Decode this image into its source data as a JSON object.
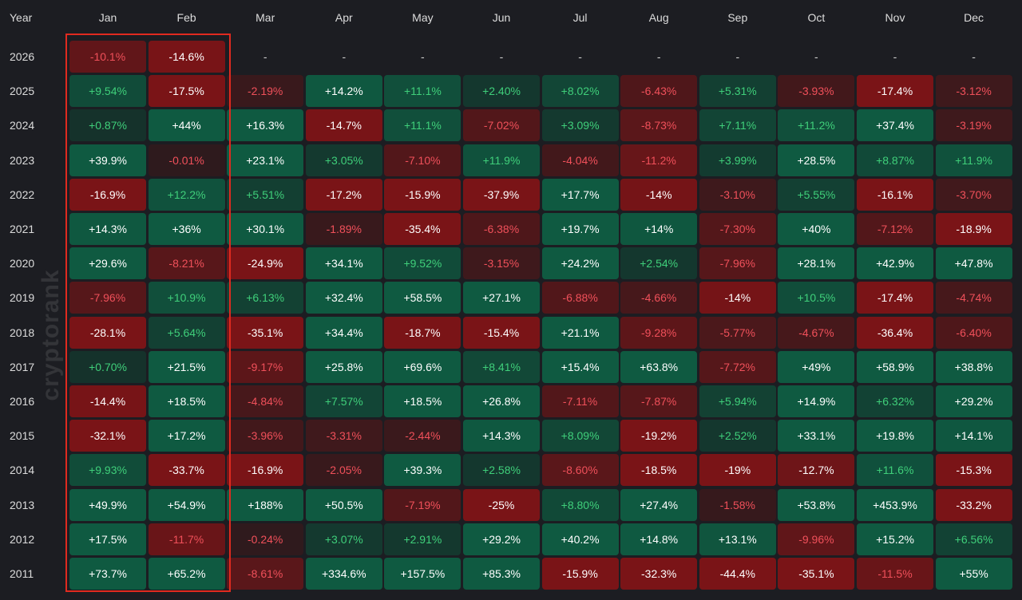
{
  "chart_data": {
    "type": "heatmap",
    "corner_label": "Year",
    "months": [
      "Jan",
      "Feb",
      "Mar",
      "Apr",
      "May",
      "Jun",
      "Jul",
      "Aug",
      "Sep",
      "Oct",
      "Nov",
      "Dec"
    ],
    "unit": "%",
    "rows": [
      {
        "year": "2026",
        "labels": [
          "-10.1%",
          "-14.6%",
          "-",
          "-",
          "-",
          "-",
          "-",
          "-",
          "-",
          "-",
          "-",
          "-"
        ],
        "values": [
          -10.1,
          -14.6,
          null,
          null,
          null,
          null,
          null,
          null,
          null,
          null,
          null,
          null
        ]
      },
      {
        "year": "2025",
        "labels": [
          "+9.54%",
          "-17.5%",
          "-2.19%",
          "+14.2%",
          "+11.1%",
          "+2.40%",
          "+8.02%",
          "-6.43%",
          "+5.31%",
          "-3.93%",
          "-17.4%",
          "-3.12%"
        ],
        "values": [
          9.54,
          -17.5,
          -2.19,
          14.2,
          11.1,
          2.4,
          8.02,
          -6.43,
          5.31,
          -3.93,
          -17.4,
          -3.12
        ]
      },
      {
        "year": "2024",
        "labels": [
          "+0.87%",
          "+44%",
          "+16.3%",
          "-14.7%",
          "+11.1%",
          "-7.02%",
          "+3.09%",
          "-8.73%",
          "+7.11%",
          "+11.2%",
          "+37.4%",
          "-3.19%"
        ],
        "values": [
          0.87,
          44,
          16.3,
          -14.7,
          11.1,
          -7.02,
          3.09,
          -8.73,
          7.11,
          11.2,
          37.4,
          -3.19
        ]
      },
      {
        "year": "2023",
        "labels": [
          "+39.9%",
          "-0.01%",
          "+23.1%",
          "+3.05%",
          "-7.10%",
          "+11.9%",
          "-4.04%",
          "-11.2%",
          "+3.99%",
          "+28.5%",
          "+8.87%",
          "+11.9%"
        ],
        "values": [
          39.9,
          -0.01,
          23.1,
          3.05,
          -7.1,
          11.9,
          -4.04,
          -11.2,
          3.99,
          28.5,
          8.87,
          11.9
        ]
      },
      {
        "year": "2022",
        "labels": [
          "-16.9%",
          "+12.2%",
          "+5.51%",
          "-17.2%",
          "-15.9%",
          "-37.9%",
          "+17.7%",
          "-14%",
          "-3.10%",
          "+5.55%",
          "-16.1%",
          "-3.70%"
        ],
        "values": [
          -16.9,
          12.2,
          5.51,
          -17.2,
          -15.9,
          -37.9,
          17.7,
          -14,
          -3.1,
          5.55,
          -16.1,
          -3.7
        ]
      },
      {
        "year": "2021",
        "labels": [
          "+14.3%",
          "+36%",
          "+30.1%",
          "-1.89%",
          "-35.4%",
          "-6.38%",
          "+19.7%",
          "+14%",
          "-7.30%",
          "+40%",
          "-7.12%",
          "-18.9%"
        ],
        "values": [
          14.3,
          36,
          30.1,
          -1.89,
          -35.4,
          -6.38,
          19.7,
          14,
          -7.3,
          40,
          -7.12,
          -18.9
        ]
      },
      {
        "year": "2020",
        "labels": [
          "+29.6%",
          "-8.21%",
          "-24.9%",
          "+34.1%",
          "+9.52%",
          "-3.15%",
          "+24.2%",
          "+2.54%",
          "-7.96%",
          "+28.1%",
          "+42.9%",
          "+47.8%"
        ],
        "values": [
          29.6,
          -8.21,
          -24.9,
          34.1,
          9.52,
          -3.15,
          24.2,
          2.54,
          -7.96,
          28.1,
          42.9,
          47.8
        ]
      },
      {
        "year": "2019",
        "labels": [
          "-7.96%",
          "+10.9%",
          "+6.13%",
          "+32.4%",
          "+58.5%",
          "+27.1%",
          "-6.88%",
          "-4.66%",
          "-14%",
          "+10.5%",
          "-17.4%",
          "-4.74%"
        ],
        "values": [
          -7.96,
          10.9,
          6.13,
          32.4,
          58.5,
          27.1,
          -6.88,
          -4.66,
          -14,
          10.5,
          -17.4,
          -4.74
        ]
      },
      {
        "year": "2018",
        "labels": [
          "-28.1%",
          "+5.64%",
          "-35.1%",
          "+34.4%",
          "-18.7%",
          "-15.4%",
          "+21.1%",
          "-9.28%",
          "-5.77%",
          "-4.67%",
          "-36.4%",
          "-6.40%"
        ],
        "values": [
          -28.1,
          5.64,
          -35.1,
          34.4,
          -18.7,
          -15.4,
          21.1,
          -9.28,
          -5.77,
          -4.67,
          -36.4,
          -6.4
        ]
      },
      {
        "year": "2017",
        "labels": [
          "+0.70%",
          "+21.5%",
          "-9.17%",
          "+25.8%",
          "+69.6%",
          "+8.41%",
          "+15.4%",
          "+63.8%",
          "-7.72%",
          "+49%",
          "+58.9%",
          "+38.8%"
        ],
        "values": [
          0.7,
          21.5,
          -9.17,
          25.8,
          69.6,
          8.41,
          15.4,
          63.8,
          -7.72,
          49,
          58.9,
          38.8
        ]
      },
      {
        "year": "2016",
        "labels": [
          "-14.4%",
          "+18.5%",
          "-4.84%",
          "+7.57%",
          "+18.5%",
          "+26.8%",
          "-7.11%",
          "-7.87%",
          "+5.94%",
          "+14.9%",
          "+6.32%",
          "+29.2%"
        ],
        "values": [
          -14.4,
          18.5,
          -4.84,
          7.57,
          18.5,
          26.8,
          -7.11,
          -7.87,
          5.94,
          14.9,
          6.32,
          29.2
        ]
      },
      {
        "year": "2015",
        "labels": [
          "-32.1%",
          "+17.2%",
          "-3.96%",
          "-3.31%",
          "-2.44%",
          "+14.3%",
          "+8.09%",
          "-19.2%",
          "+2.52%",
          "+33.1%",
          "+19.8%",
          "+14.1%"
        ],
        "values": [
          -32.1,
          17.2,
          -3.96,
          -3.31,
          -2.44,
          14.3,
          8.09,
          -19.2,
          2.52,
          33.1,
          19.8,
          14.1
        ]
      },
      {
        "year": "2014",
        "labels": [
          "+9.93%",
          "-33.7%",
          "-16.9%",
          "-2.05%",
          "+39.3%",
          "+2.58%",
          "-8.60%",
          "-18.5%",
          "-19%",
          "-12.7%",
          "+11.6%",
          "-15.3%"
        ],
        "values": [
          9.93,
          -33.7,
          -16.9,
          -2.05,
          39.3,
          2.58,
          -8.6,
          -18.5,
          -19,
          -12.7,
          11.6,
          -15.3
        ]
      },
      {
        "year": "2013",
        "labels": [
          "+49.9%",
          "+54.9%",
          "+188%",
          "+50.5%",
          "-7.19%",
          "-25%",
          "+8.80%",
          "+27.4%",
          "-1.58%",
          "+53.8%",
          "+453.9%",
          "-33.2%"
        ],
        "values": [
          49.9,
          54.9,
          188,
          50.5,
          -7.19,
          -25,
          8.8,
          27.4,
          -1.58,
          53.8,
          453.9,
          -33.2
        ]
      },
      {
        "year": "2012",
        "labels": [
          "+17.5%",
          "-11.7%",
          "-0.24%",
          "+3.07%",
          "+2.91%",
          "+29.2%",
          "+40.2%",
          "+14.8%",
          "+13.1%",
          "-9.96%",
          "+15.2%",
          "+6.56%"
        ],
        "values": [
          17.5,
          -11.7,
          -0.24,
          3.07,
          2.91,
          29.2,
          40.2,
          14.8,
          13.1,
          -9.96,
          15.2,
          6.56
        ]
      },
      {
        "year": "2011",
        "labels": [
          "+73.7%",
          "+65.2%",
          "-8.61%",
          "+334.6%",
          "+157.5%",
          "+85.3%",
          "-15.9%",
          "-32.3%",
          "-44.4%",
          "-35.1%",
          "-11.5%",
          "+55%"
        ],
        "values": [
          73.7,
          65.2,
          -8.61,
          334.6,
          157.5,
          85.3,
          -15.9,
          -32.3,
          -44.4,
          -35.1,
          -11.5,
          55
        ]
      }
    ],
    "highlighted_columns": [
      "Jan",
      "Feb"
    ],
    "colors": {
      "positive_strong": "#0f5a41",
      "positive_weak": "#15302a",
      "negative_strong": "#7a1417",
      "negative_weak": "#2e1a1d",
      "empty": "#1c1d22",
      "text_bright": "#ffffff",
      "text_positive": "#3fcf7a",
      "text_negative": "#f0505a",
      "highlight_border": "#e02a1f"
    }
  },
  "watermark": "cryptorank"
}
